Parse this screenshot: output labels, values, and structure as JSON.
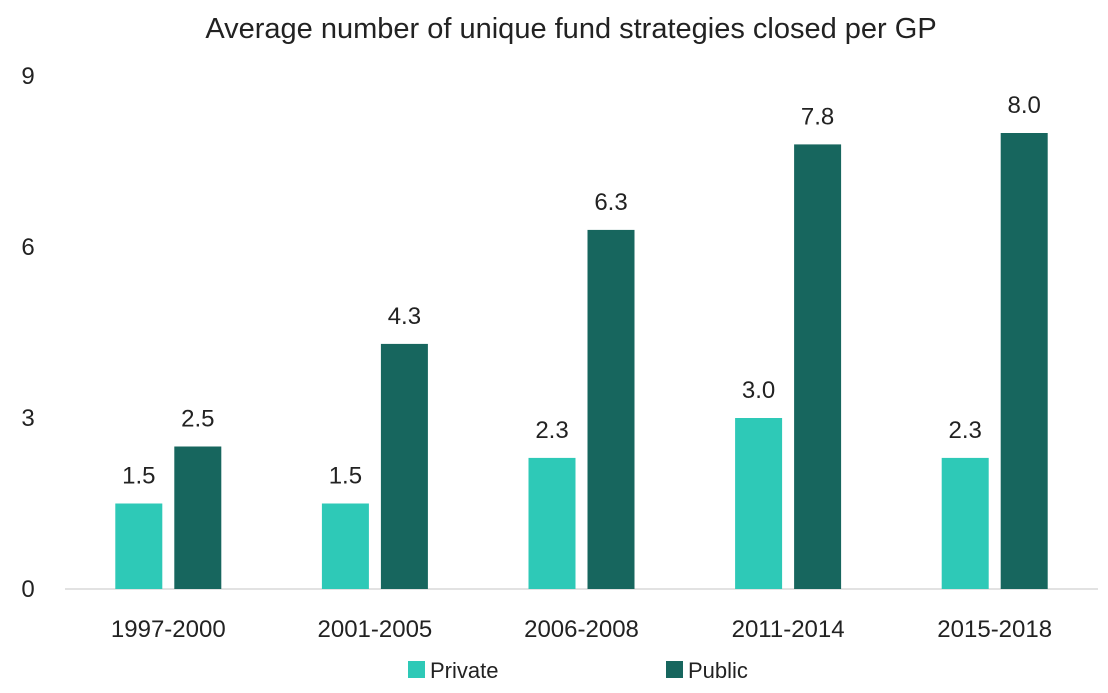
{
  "chart_data": {
    "type": "bar",
    "title": "Average number of unique fund strategies closed per GP",
    "xlabel": "",
    "ylabel": "",
    "categories": [
      "1997-2000",
      "2001-2005",
      "2006-2008",
      "2011-2014",
      "2015-2018"
    ],
    "series": [
      {
        "name": "Private",
        "color": "#2ec9b7",
        "values": [
          1.5,
          1.5,
          2.3,
          3.0,
          2.3
        ],
        "labels": [
          "1.5",
          "1.5",
          "2.3",
          "3.0",
          "2.3"
        ]
      },
      {
        "name": "Public",
        "color": "#17665e",
        "values": [
          2.5,
          4.3,
          6.3,
          7.8,
          8.0
        ],
        "labels": [
          "2.5",
          "4.3",
          "6.3",
          "7.8",
          "8.0"
        ]
      }
    ],
    "ylim": [
      0,
      9
    ],
    "yticks": [
      0,
      3,
      6,
      9
    ],
    "ytick_labels": [
      "0",
      "3",
      "6",
      "9"
    ],
    "grid": false,
    "legend_position": "bottom"
  }
}
